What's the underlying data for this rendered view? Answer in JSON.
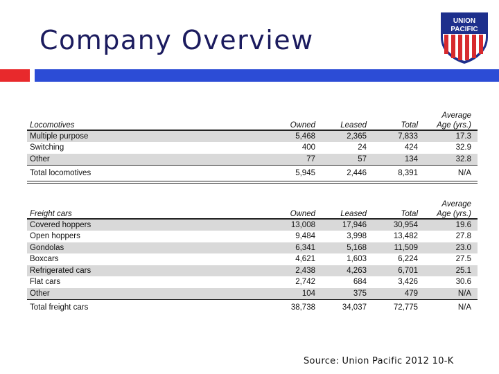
{
  "slide": {
    "title": "Company Overview",
    "logo_text_line1": "UNION",
    "logo_text_line2": "PACIFIC",
    "source": "Source: Union Pacific 2012 10-K",
    "colors": {
      "title": "#1b1b5e",
      "accent_red": "#e8292c",
      "accent_blue": "#2c4cd6",
      "row_shade": "#d9d9d9"
    }
  },
  "locomotives": {
    "headers": {
      "category": "Locomotives",
      "owned": "Owned",
      "leased": "Leased",
      "total": "Total",
      "age_line1": "Average",
      "age_line2": "Age (yrs.)"
    },
    "rows": [
      {
        "name": "Multiple purpose",
        "owned": "5,468",
        "leased": "2,365",
        "total": "7,833",
        "age": "17.3"
      },
      {
        "name": "Switching",
        "owned": "400",
        "leased": "24",
        "total": "424",
        "age": "32.9"
      },
      {
        "name": "Other",
        "owned": "77",
        "leased": "57",
        "total": "134",
        "age": "32.8"
      }
    ],
    "total": {
      "name": "Total locomotives",
      "owned": "5,945",
      "leased": "2,446",
      "total": "8,391",
      "age": "N/A"
    }
  },
  "freight_cars": {
    "headers": {
      "category": "Freight cars",
      "owned": "Owned",
      "leased": "Leased",
      "total": "Total",
      "age_line1": "Average",
      "age_line2": "Age (yrs.)"
    },
    "rows": [
      {
        "name": "Covered hoppers",
        "owned": "13,008",
        "leased": "17,946",
        "total": "30,954",
        "age": "19.6"
      },
      {
        "name": "Open hoppers",
        "owned": "9,484",
        "leased": "3,998",
        "total": "13,482",
        "age": "27.8"
      },
      {
        "name": "Gondolas",
        "owned": "6,341",
        "leased": "5,168",
        "total": "11,509",
        "age": "23.0"
      },
      {
        "name": "Boxcars",
        "owned": "4,621",
        "leased": "1,603",
        "total": "6,224",
        "age": "27.5"
      },
      {
        "name": "Refrigerated cars",
        "owned": "2,438",
        "leased": "4,263",
        "total": "6,701",
        "age": "25.1"
      },
      {
        "name": "Flat cars",
        "owned": "2,742",
        "leased": "684",
        "total": "3,426",
        "age": "30.6"
      },
      {
        "name": "Other",
        "owned": "104",
        "leased": "375",
        "total": "479",
        "age": "N/A"
      }
    ],
    "total": {
      "name": "Total freight cars",
      "owned": "38,738",
      "leased": "34,037",
      "total": "72,775",
      "age": "N/A"
    }
  }
}
